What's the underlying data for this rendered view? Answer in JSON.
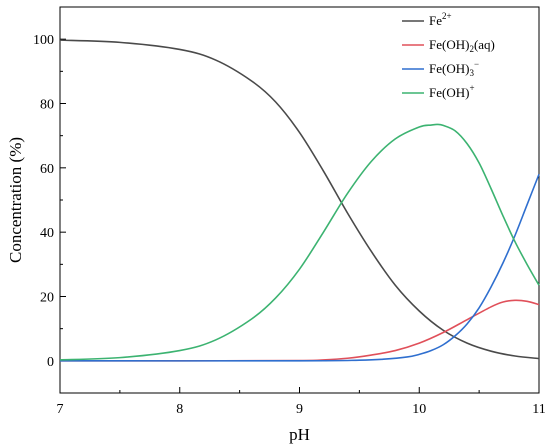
{
  "chart_data": {
    "type": "line",
    "xlabel": "pH",
    "ylabel": "Concentration (%)",
    "xlim": [
      7,
      11
    ],
    "ylim": [
      -10,
      110
    ],
    "xticks": [
      7,
      8,
      9,
      10,
      11
    ],
    "yticks": [
      0,
      20,
      40,
      60,
      80,
      100
    ],
    "grid": false,
    "legend_position": "top-right",
    "series": [
      {
        "name": "Fe2+",
        "legend": {
          "base": "Fe",
          "sup": "2+",
          "sub": "",
          "suffix": ""
        },
        "color": "#4a4a4a",
        "x": [
          7.0,
          7.5,
          8.0,
          8.3,
          8.6,
          8.8,
          9.0,
          9.2,
          9.4,
          9.6,
          9.8,
          10.0,
          10.2,
          10.4,
          10.6,
          10.8,
          11.0
        ],
        "y": [
          99.7,
          99.0,
          96.8,
          93.5,
          87.0,
          80.5,
          71.0,
          59.0,
          46.0,
          34.0,
          23.5,
          15.5,
          9.5,
          5.5,
          3.0,
          1.5,
          0.7
        ]
      },
      {
        "name": "Fe(OH)2(aq)",
        "legend": {
          "base": "Fe(OH)",
          "sup": "",
          "sub": "2",
          "suffix": "(aq)"
        },
        "color": "#e0505a",
        "x": [
          7.0,
          8.0,
          9.0,
          9.2,
          9.4,
          9.6,
          9.8,
          10.0,
          10.2,
          10.4,
          10.6,
          10.7,
          10.8,
          10.9,
          11.0
        ],
        "y": [
          0.0,
          0.0,
          0.1,
          0.3,
          0.8,
          1.8,
          3.2,
          5.5,
          8.8,
          12.8,
          16.8,
          18.3,
          18.8,
          18.5,
          17.5
        ]
      },
      {
        "name": "Fe(OH)3−",
        "legend": {
          "base": "Fe(OH)",
          "sup": "−",
          "sub": "3",
          "suffix": ""
        },
        "color": "#2f6fcf",
        "x": [
          7.0,
          9.0,
          9.5,
          9.7,
          9.9,
          10.0,
          10.1,
          10.2,
          10.3,
          10.4,
          10.5,
          10.6,
          10.7,
          10.8,
          10.9,
          11.0
        ],
        "y": [
          0.0,
          0.0,
          0.2,
          0.5,
          1.2,
          2.0,
          3.2,
          5.0,
          7.8,
          11.5,
          16.5,
          23.0,
          30.5,
          39.0,
          48.5,
          58.0
        ]
      },
      {
        "name": "Fe(OH)+",
        "legend": {
          "base": "Fe(OH)",
          "sup": "+",
          "sub": "",
          "suffix": ""
        },
        "color": "#3cb371",
        "x": [
          7.0,
          7.5,
          8.0,
          8.3,
          8.6,
          8.8,
          9.0,
          9.2,
          9.4,
          9.6,
          9.8,
          10.0,
          10.1,
          10.15,
          10.2,
          10.3,
          10.4,
          10.5,
          10.6,
          10.7,
          10.8,
          10.9,
          11.0
        ],
        "y": [
          0.3,
          1.0,
          3.2,
          6.5,
          13.0,
          19.5,
          28.5,
          40.0,
          52.0,
          62.0,
          69.0,
          72.7,
          73.3,
          73.5,
          73.2,
          71.5,
          67.5,
          61.5,
          53.5,
          45.0,
          37.0,
          30.0,
          23.5
        ]
      }
    ]
  }
}
